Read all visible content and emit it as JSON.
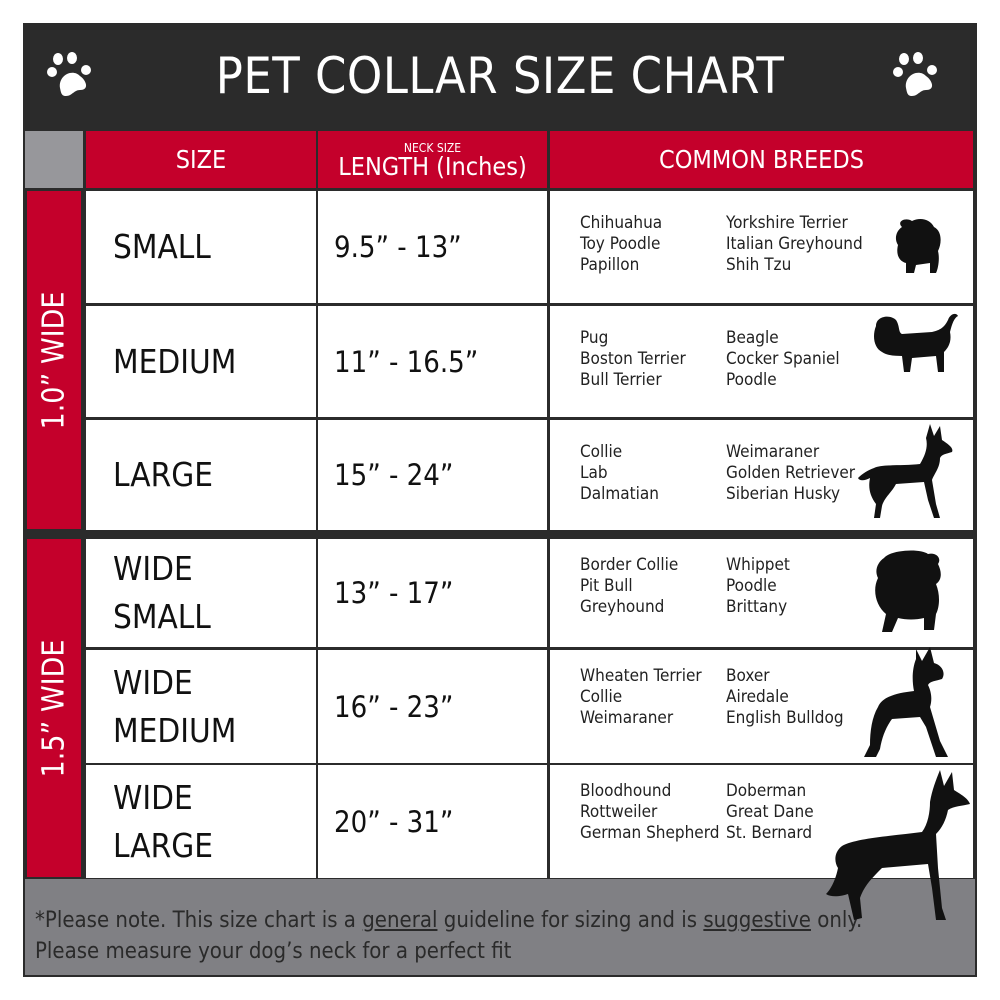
{
  "title": "PET COLLAR SIZE CHART",
  "colors": {
    "dark": "#2b2b2b",
    "red": "#c4002b",
    "gray": "#808084",
    "corner": "#97979b"
  },
  "icons": {
    "left": "paw-print-icon",
    "right": "paw-print-icon"
  },
  "header": {
    "size": "SIZE",
    "length_small": "NECK SIZE",
    "length": "LENGTH (Inches)",
    "breeds": "COMMON BREEDS"
  },
  "groups": [
    {
      "label": "1.0” WIDE"
    },
    {
      "label": "1.5” WIDE"
    }
  ],
  "rows": [
    {
      "size": [
        "SMALL"
      ],
      "length": "9.5” - 13”",
      "breeds_left": [
        "Chihuahua",
        "Toy Poodle",
        "Papillon"
      ],
      "breeds_right": [
        "Yorkshire Terrier",
        "Italian Greyhound",
        "Shih Tzu"
      ],
      "icon": "small-dog-silhouette-icon"
    },
    {
      "size": [
        "MEDIUM"
      ],
      "length": "11” - 16.5”",
      "breeds_left": [
        "Pug",
        "Boston Terrier",
        "Bull Terrier"
      ],
      "breeds_right": [
        "Beagle",
        "Cocker Spaniel",
        "Poodle"
      ],
      "icon": "medium-dog-silhouette-icon"
    },
    {
      "size": [
        "LARGE"
      ],
      "length": "15” - 24”",
      "breeds_left": [
        "Collie",
        "Lab",
        "Dalmatian"
      ],
      "breeds_right": [
        "Weimaraner",
        "Golden Retriever",
        "Siberian Husky"
      ],
      "icon": "large-dog-silhouette-icon"
    },
    {
      "size": [
        "WIDE",
        "SMALL"
      ],
      "length": "13” - 17”",
      "breeds_left": [
        "Border Collie",
        "Pit Bull",
        "Greyhound"
      ],
      "breeds_right": [
        "Whippet",
        "Poodle",
        "Brittany"
      ],
      "icon": "bulldog-silhouette-icon"
    },
    {
      "size": [
        "WIDE",
        "MEDIUM"
      ],
      "length": "16” - 23”",
      "breeds_left": [
        "Wheaten Terrier",
        "Collie",
        "Weimaraner"
      ],
      "breeds_right": [
        "Boxer",
        "Airedale",
        "English Bulldog"
      ],
      "icon": "pitbull-silhouette-icon"
    },
    {
      "size": [
        "WIDE",
        "LARGE"
      ],
      "length": "20” - 31”",
      "breeds_left": [
        "Bloodhound",
        "Rottweiler",
        "German Shepherd"
      ],
      "breeds_right": [
        "Doberman",
        "Great Dane",
        "St. Bernard"
      ],
      "icon": "doberman-silhouette-icon"
    }
  ],
  "footer": {
    "part1": "*Please note. This size chart is a ",
    "general": "general",
    "part2": " guideline for sizing and is ",
    "suggestive": "suggestive",
    "part3": " only.",
    "line2": "Please measure your dog’s neck for a perfect fit"
  }
}
